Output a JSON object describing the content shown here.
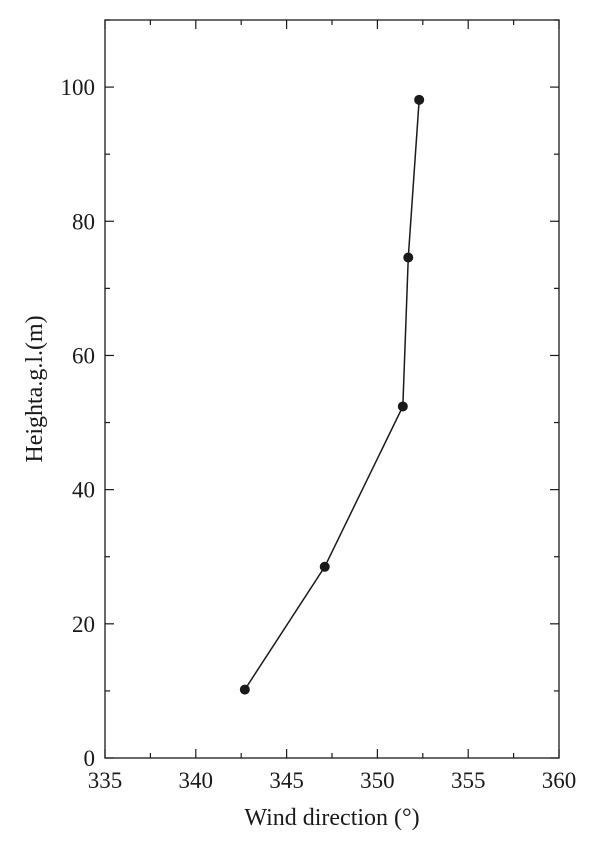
{
  "chart_data": {
    "type": "line",
    "xlabel": "Wind direction (°)",
    "ylabel": "Heighta.g.l.(m)",
    "xlim": [
      335,
      360
    ],
    "ylim": [
      0,
      110
    ],
    "x_ticks": [
      335,
      340,
      345,
      350,
      355,
      360
    ],
    "y_ticks": [
      0,
      20,
      40,
      60,
      80,
      100
    ],
    "x_tick_labels": [
      "335",
      "340",
      "345",
      "350",
      "355",
      "360"
    ],
    "y_tick_labels": [
      "0",
      "20",
      "40",
      "60",
      "80",
      "100"
    ],
    "grid": false,
    "series": [
      {
        "points": [
          {
            "x": 342.7,
            "y": 10.2
          },
          {
            "x": 347.1,
            "y": 28.5
          },
          {
            "x": 351.4,
            "y": 52.4
          },
          {
            "x": 351.7,
            "y": 74.6
          },
          {
            "x": 352.3,
            "y": 98.1
          }
        ],
        "color": "#1a1a1a",
        "marker": "filled-circle"
      }
    ]
  }
}
